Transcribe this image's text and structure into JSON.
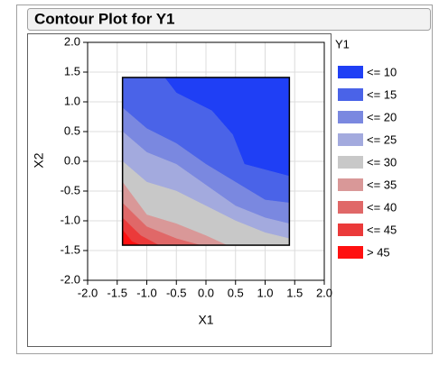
{
  "chart_data": {
    "type": "contour",
    "title": "Contour Plot for Y1",
    "x_label": "X1",
    "y_label": "X2",
    "legend_title": "Y1",
    "xlim": [
      -2,
      2
    ],
    "ylim": [
      -2,
      2
    ],
    "grid": true,
    "xticks": [
      {
        "value": -2,
        "label": "-2.0"
      },
      {
        "value": -1.5,
        "label": "-1.5"
      },
      {
        "value": -1,
        "label": "-1.0"
      },
      {
        "value": -0.5,
        "label": "-0.5"
      },
      {
        "value": 0,
        "label": "0.0"
      },
      {
        "value": 0.5,
        "label": "0.5"
      },
      {
        "value": 1,
        "label": "1.0"
      },
      {
        "value": 1.5,
        "label": "1.5"
      },
      {
        "value": 2,
        "label": "2.0"
      }
    ],
    "yticks": [
      {
        "value": -2,
        "label": "-2.0"
      },
      {
        "value": -1.5,
        "label": "-1.5"
      },
      {
        "value": -1,
        "label": "-1.0"
      },
      {
        "value": -0.5,
        "label": "-0.5"
      },
      {
        "value": 0,
        "label": "0.0"
      },
      {
        "value": 0.5,
        "label": "0.5"
      },
      {
        "value": 1,
        "label": "1.0"
      },
      {
        "value": 1.5,
        "label": "1.5"
      },
      {
        "value": 2,
        "label": "2.0"
      }
    ],
    "series": [
      {
        "name": "<= 10",
        "color": "#1f3ff5",
        "x": [
          -0.7,
          -0.5,
          0.1,
          0.45,
          0.65,
          1.41,
          1.41
        ],
        "y": [
          1.41,
          1.15,
          0.85,
          0.45,
          -0.05,
          -0.25,
          1.41
        ]
      },
      {
        "name": "<= 15",
        "color": "#4a63e8",
        "x": [
          -1.41,
          -0.7,
          -0.5,
          0.1,
          0.45,
          0.65,
          1.41,
          1.41,
          1.0,
          0.5,
          0,
          -0.5,
          -1.0,
          -1.41
        ],
        "y": [
          1.41,
          1.41,
          1.15,
          0.85,
          0.45,
          -0.05,
          -0.25,
          -0.7,
          -0.65,
          -0.35,
          -0.05,
          0.3,
          0.55,
          0.9
        ]
      },
      {
        "name": "<= 20",
        "color": "#7a88e0",
        "x": [
          -1.41,
          -1.0,
          -0.5,
          0,
          0.5,
          1.0,
          1.41,
          1.41,
          1.0,
          0.5,
          0,
          -0.5,
          -1.0,
          -1.41
        ],
        "y": [
          0.9,
          0.55,
          0.3,
          -0.05,
          -0.35,
          -0.65,
          -0.7,
          -1.05,
          -0.95,
          -0.75,
          -0.4,
          -0.05,
          0.15,
          0.5
        ]
      },
      {
        "name": "<= 25",
        "color": "#a3aade",
        "x": [
          -1.41,
          -1.0,
          -0.5,
          0,
          0.5,
          1.0,
          1.41,
          1.41,
          1.0,
          0.5,
          0,
          -0.5,
          -1.0,
          -1.41
        ],
        "y": [
          0.5,
          0.15,
          -0.05,
          -0.4,
          -0.75,
          -0.95,
          -1.05,
          -1.3,
          -1.2,
          -1.0,
          -0.75,
          -0.5,
          -0.35,
          0.0
        ]
      },
      {
        "name": "<= 30",
        "color": "#c8c8c8",
        "x": [
          -1.41,
          -1.0,
          -0.5,
          0,
          0.5,
          1.0,
          1.41,
          1.41,
          0.35,
          0,
          -0.5,
          -1.0,
          -1.41
        ],
        "y": [
          0.0,
          -0.35,
          -0.5,
          -0.75,
          -1.0,
          -1.2,
          -1.3,
          -1.41,
          -1.41,
          -1.25,
          -1.05,
          -0.9,
          -0.35
        ]
      },
      {
        "name": "<= 35",
        "color": "#d99898",
        "x": [
          -1.41,
          -1.0,
          -0.5,
          0,
          0.35,
          -0.1,
          -0.5,
          -1.0,
          -1.41
        ],
        "y": [
          -0.35,
          -0.9,
          -1.05,
          -1.25,
          -1.41,
          -1.41,
          -1.3,
          -1.1,
          -0.7
        ]
      },
      {
        "name": "<= 40",
        "color": "#e06868",
        "x": [
          -1.41,
          -1.0,
          -0.5,
          -0.1,
          -0.8,
          -1.1,
          -1.41
        ],
        "y": [
          -0.7,
          -1.1,
          -1.3,
          -1.41,
          -1.41,
          -1.25,
          -0.95
        ]
      },
      {
        "name": "<= 45",
        "color": "#eb3a3a",
        "x": [
          -1.41,
          -1.1,
          -0.8,
          -1.1,
          -1.25,
          -1.41
        ],
        "y": [
          -0.95,
          -1.25,
          -1.41,
          -1.41,
          -1.35,
          -1.15
        ]
      },
      {
        "name": "> 45",
        "color": "#ff1010",
        "x": [
          -1.41,
          -1.25,
          -1.1,
          -1.41
        ],
        "y": [
          -1.15,
          -1.35,
          -1.41,
          -1.41
        ]
      }
    ]
  }
}
